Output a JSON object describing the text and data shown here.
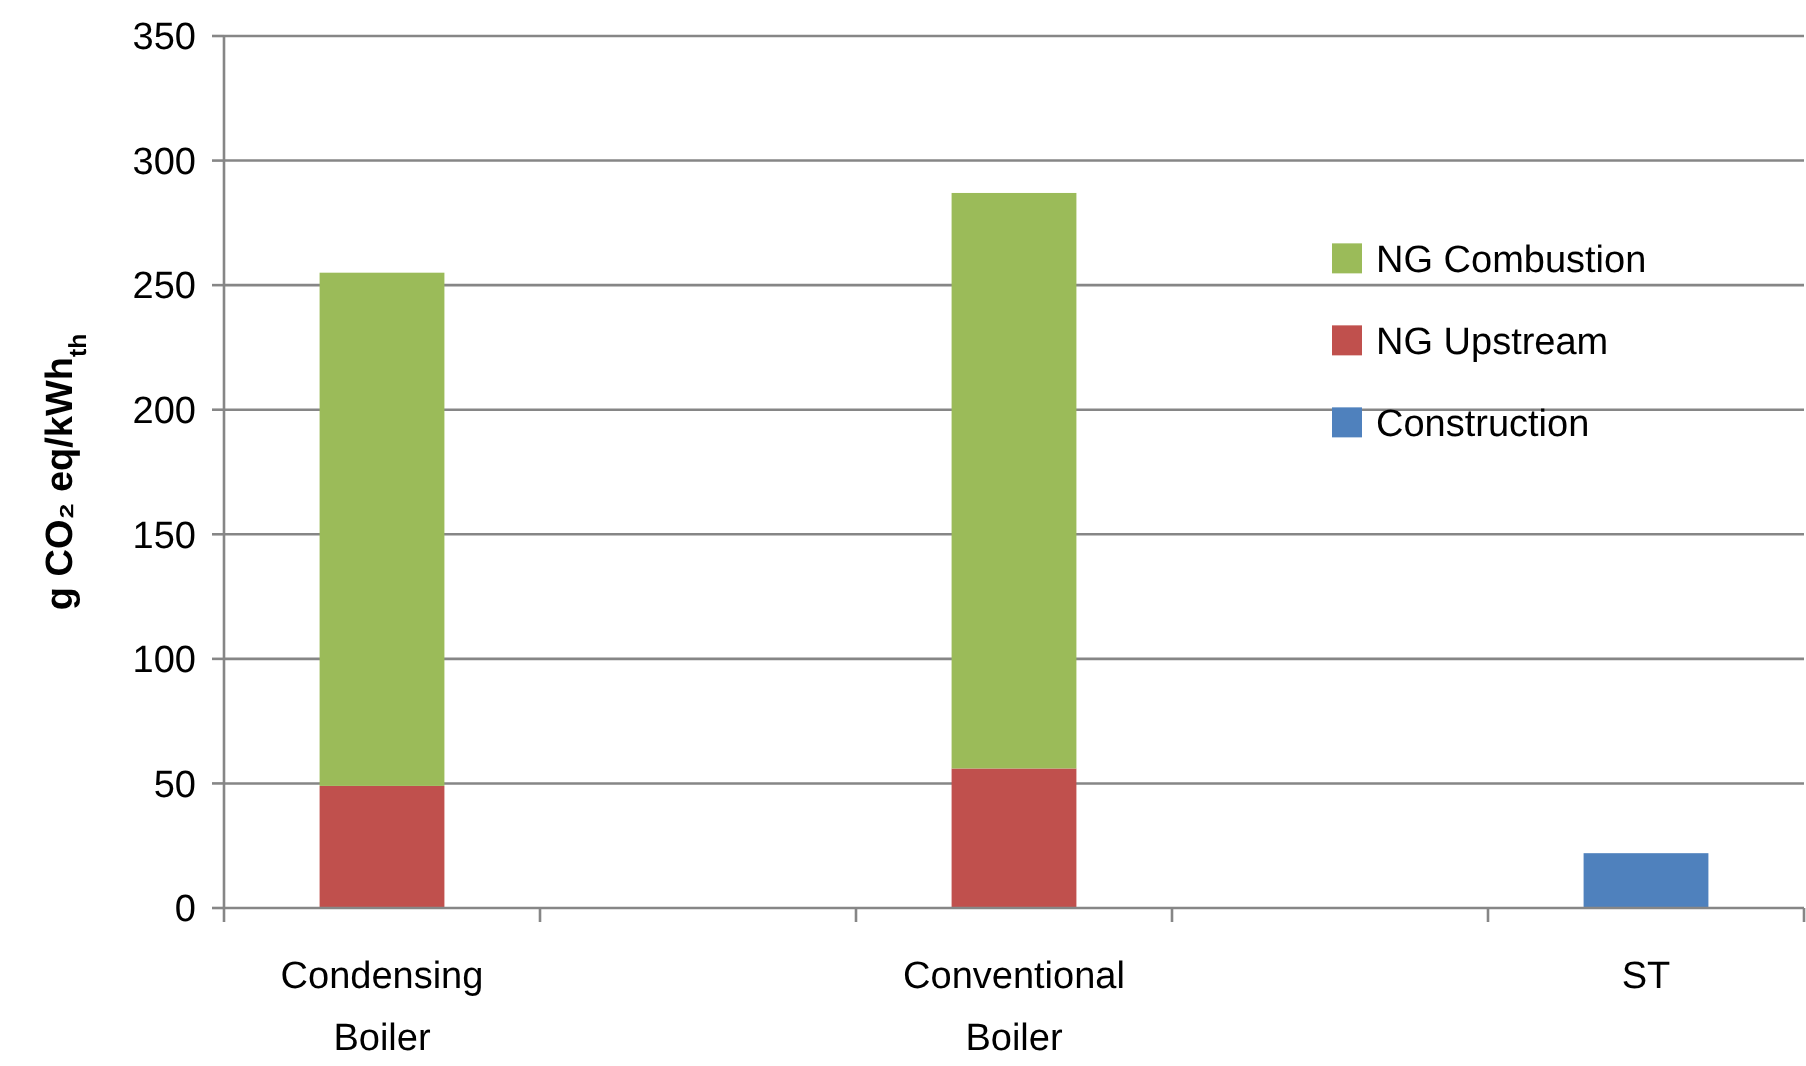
{
  "chart_data": {
    "type": "bar",
    "stacked": true,
    "categories": [
      "Condensing Boiler",
      null,
      "Conventional Boiler",
      null,
      "ST"
    ],
    "series": [
      {
        "name": "Construction",
        "color": "#4f81bd",
        "values": [
          null,
          null,
          null,
          null,
          22
        ]
      },
      {
        "name": "NG Upstream",
        "color": "#c0504d",
        "values": [
          49,
          null,
          56,
          null,
          null
        ]
      },
      {
        "name": "NG Combustion",
        "color": "#9bbb59",
        "values": [
          206,
          null,
          231,
          null,
          null
        ]
      }
    ],
    "ylabel": "g CO₂ eq/kWh$_{th}$",
    "ylim": [
      0,
      350
    ],
    "yticks": [
      0,
      50,
      100,
      150,
      200,
      250,
      300,
      350
    ],
    "grid": "y",
    "legend": "right"
  }
}
